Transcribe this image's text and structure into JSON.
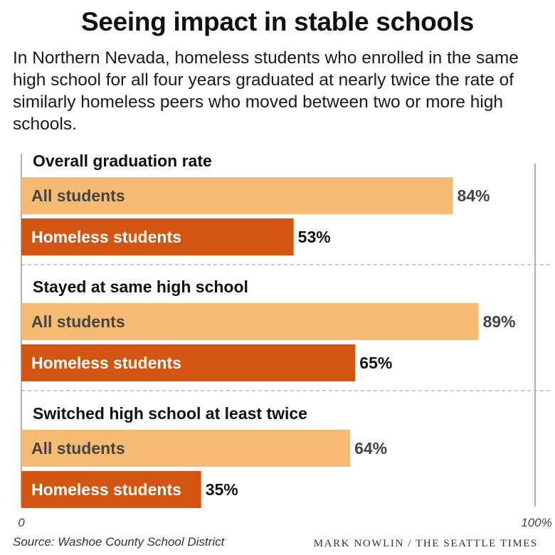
{
  "title": "Seeing impact in stable schools",
  "subtitle": "In Northern Nevada, homeless students who enrolled in the same high school for all four years graduated at nearly twice the rate of similarly homeless peers who moved between two or more high schools.",
  "footer": {
    "source": "Source: Washoe County School District",
    "credit": "MARK NOWLIN / THE SEATTLE TIMES"
  },
  "colors": {
    "all_students": "#f5bb72",
    "homeless_students": "#d25611",
    "label_on_light": "#444444",
    "label_on_dark": "#ffffff",
    "axis": "#999999"
  },
  "chart_data": {
    "type": "bar",
    "orientation": "horizontal",
    "xlim": [
      0,
      100
    ],
    "x_tick_labels": [
      "0",
      "100%"
    ],
    "value_suffix": "%",
    "grid": false,
    "groups": [
      {
        "title": "Overall graduation rate",
        "bars": [
          {
            "series": "All students",
            "value": 84
          },
          {
            "series": "Homeless students",
            "value": 53
          }
        ]
      },
      {
        "title": "Stayed at same high school",
        "bars": [
          {
            "series": "All students",
            "value": 89
          },
          {
            "series": "Homeless students",
            "value": 65
          }
        ]
      },
      {
        "title": "Switched high school at least twice",
        "bars": [
          {
            "series": "All students",
            "value": 64
          },
          {
            "series": "Homeless students",
            "value": 35
          }
        ]
      }
    ]
  }
}
